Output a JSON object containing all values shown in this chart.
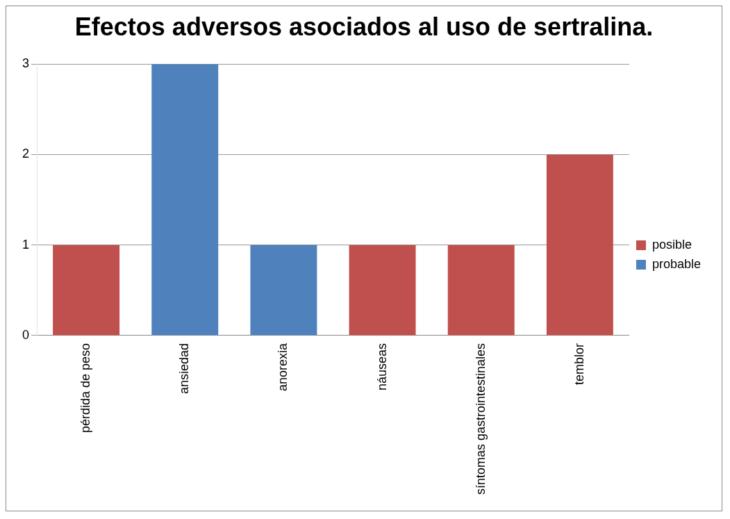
{
  "chart_data": {
    "type": "bar",
    "title": "Efectos adversos asociados al uso de sertralina.",
    "categories": [
      "pérdida de peso",
      "ansiedad",
      "anorexia",
      "náuseas",
      "síntomas gastrointestinales",
      "temblor"
    ],
    "series": [
      {
        "name": "posible",
        "color": "#c0504d",
        "values": [
          1,
          null,
          null,
          1,
          1,
          2
        ]
      },
      {
        "name": "probable",
        "color": "#4f81bd",
        "values": [
          null,
          3,
          1,
          null,
          null,
          null
        ]
      }
    ],
    "stacked": true,
    "ylim": [
      0,
      3
    ],
    "yticks": [
      0,
      1,
      2,
      3
    ],
    "grid": "y",
    "legend": "right"
  }
}
